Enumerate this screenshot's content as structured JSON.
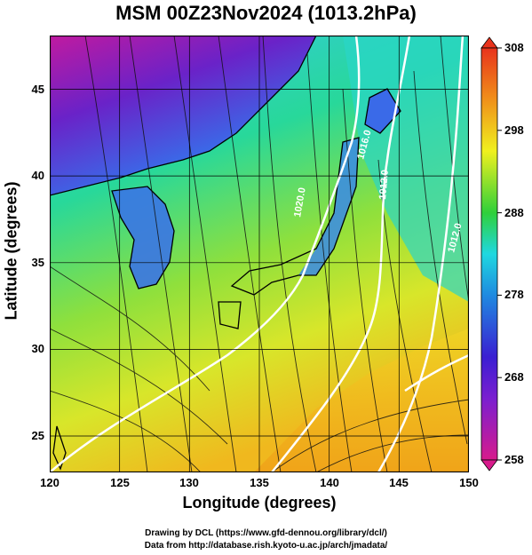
{
  "title": "MSM 00Z23Nov2024 (1013.2hPa)",
  "axes": {
    "xlabel": "Longitude (degrees)",
    "ylabel": "Latitude  (degrees)",
    "xticks": [
      "120",
      "125",
      "130",
      "135",
      "140",
      "145",
      "150"
    ],
    "yticks": [
      "25",
      "30",
      "35",
      "40",
      "45"
    ],
    "xlim": [
      120,
      150
    ],
    "ylim": [
      22.4,
      47.6
    ]
  },
  "colorbar": {
    "range": [
      258,
      308
    ],
    "ticks": [
      "308",
      "298",
      "288",
      "278",
      "268",
      "258"
    ],
    "colors": [
      "#d71b8c",
      "#3a1fd2",
      "#1fd8e0",
      "#2fd03a",
      "#f0f01e",
      "#f08c1a",
      "#e8331c"
    ]
  },
  "contours": {
    "labels": [
      "1020.0",
      "1016.0",
      "1012.0",
      "1012.0"
    ],
    "line_color": "#ffffff"
  },
  "credits": {
    "line1": "Drawing by DCL (https://www.gfd-dennou.org/library/dcl/)",
    "line2": "Data from http://database.rish.kyoto-u.ac.jp/arch/jmadata/"
  }
}
